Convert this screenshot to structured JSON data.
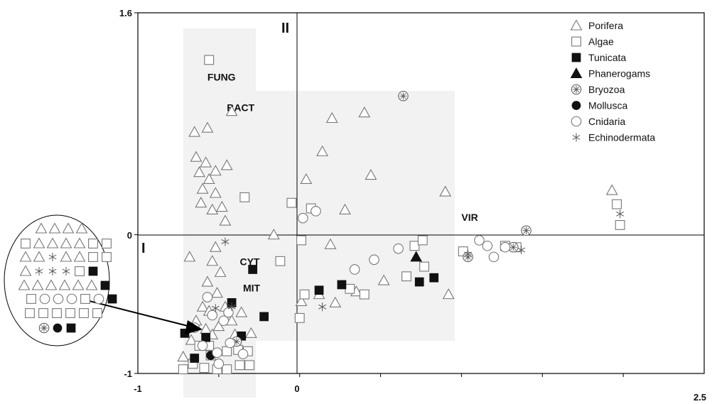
{
  "chart_data": {
    "type": "scatter",
    "title": "",
    "xlabel": "",
    "ylabel": "",
    "xlim": [
      -1,
      2.5
    ],
    "ylim": [
      -1,
      1.6
    ],
    "x_tick_labels": [
      "-1",
      "0",
      "2.5"
    ],
    "y_tick_labels": [
      "1.6",
      "0",
      "-1"
    ],
    "quadrant_labels": [
      "II",
      "I"
    ],
    "legend_position": "top-right",
    "grid": false,
    "activity_labels": [
      {
        "text": "FUNG",
        "x": -0.57,
        "y": 1.11
      },
      {
        "text": "BACT",
        "x": -0.45,
        "y": 0.89
      },
      {
        "text": "VIR",
        "x": 1.0,
        "y": 0.1
      },
      {
        "text": "CYT",
        "x": -0.37,
        "y": -0.22
      },
      {
        "text": "MIT",
        "x": -0.35,
        "y": -0.41
      }
    ],
    "series": [
      {
        "name": "Porifera",
        "marker": "triangle-open",
        "points": [
          [
            -0.65,
            0.74
          ],
          [
            -0.57,
            0.77
          ],
          [
            -0.64,
            0.56
          ],
          [
            -0.58,
            0.52
          ],
          [
            -0.52,
            0.46
          ],
          [
            -0.62,
            0.45
          ],
          [
            -0.56,
            0.4
          ],
          [
            -0.45,
            0.5
          ],
          [
            -0.6,
            0.33
          ],
          [
            -0.52,
            0.3
          ],
          [
            -0.61,
            0.23
          ],
          [
            -0.54,
            0.18
          ],
          [
            -0.48,
            0.2
          ],
          [
            -0.46,
            0.1
          ],
          [
            -0.42,
            0.89
          ],
          [
            -0.68,
            -0.16
          ],
          [
            -0.52,
            -0.09
          ],
          [
            -0.54,
            -0.19
          ],
          [
            -0.49,
            -0.27
          ],
          [
            -0.57,
            -0.34
          ],
          [
            -0.51,
            -0.42
          ],
          [
            -0.6,
            -0.52
          ],
          [
            -0.56,
            -0.55
          ],
          [
            -0.46,
            -0.52
          ],
          [
            -0.64,
            -0.62
          ],
          [
            -0.58,
            -0.68
          ],
          [
            -0.5,
            -0.66
          ],
          [
            -0.42,
            -0.62
          ],
          [
            -0.36,
            -0.56
          ],
          [
            -0.67,
            -0.76
          ],
          [
            -0.54,
            -0.72
          ],
          [
            -0.4,
            -0.72
          ],
          [
            -0.3,
            -0.71
          ],
          [
            -0.72,
            -0.88
          ],
          [
            -0.16,
            0.0
          ],
          [
            0.04,
            0.4
          ],
          [
            0.14,
            0.6
          ],
          [
            0.2,
            0.84
          ],
          [
            0.4,
            0.88
          ],
          [
            0.44,
            0.43
          ],
          [
            0.28,
            0.18
          ],
          [
            0.19,
            -0.07
          ],
          [
            0.12,
            -0.43
          ],
          [
            0.01,
            -0.48
          ],
          [
            0.22,
            -0.49
          ],
          [
            0.35,
            -0.41
          ],
          [
            0.52,
            -0.33
          ],
          [
            0.92,
            -0.43
          ],
          [
            0.9,
            0.31
          ],
          [
            1.93,
            0.32
          ]
        ]
      },
      {
        "name": "Algae",
        "marker": "square-open",
        "points": [
          [
            -0.56,
            1.26
          ],
          [
            -0.34,
            0.27
          ],
          [
            -0.05,
            0.23
          ],
          [
            0.01,
            -0.04
          ],
          [
            0.07,
            0.19
          ],
          [
            -0.12,
            -0.19
          ],
          [
            0.03,
            -0.43
          ],
          [
            0.0,
            -0.6
          ],
          [
            0.31,
            -0.39
          ],
          [
            0.4,
            -0.43
          ],
          [
            0.71,
            -0.08
          ],
          [
            0.76,
            -0.04
          ],
          [
            0.77,
            -0.23
          ],
          [
            0.66,
            -0.3
          ],
          [
            1.01,
            -0.12
          ],
          [
            1.27,
            -0.08
          ],
          [
            1.34,
            -0.09
          ],
          [
            1.96,
            0.22
          ],
          [
            1.98,
            0.07
          ],
          [
            -0.38,
            -0.83
          ],
          [
            -0.51,
            -0.97
          ],
          [
            -0.59,
            -0.96
          ],
          [
            -0.66,
            -0.93
          ],
          [
            -0.72,
            -0.97
          ],
          [
            -0.37,
            -0.94
          ],
          [
            -0.45,
            -0.97
          ],
          [
            -0.31,
            -0.94
          ],
          [
            -0.32,
            -0.84
          ],
          [
            -0.45,
            -0.84
          ],
          [
            -0.55,
            -0.87
          ],
          [
            -0.62,
            -0.8
          ],
          [
            -0.56,
            -0.8
          ]
        ]
      },
      {
        "name": "Tunicata",
        "marker": "square-filled",
        "points": [
          [
            -0.29,
            -0.25
          ],
          [
            -0.22,
            -0.59
          ],
          [
            -0.42,
            -0.49
          ],
          [
            -0.36,
            -0.73
          ],
          [
            -0.58,
            -0.74
          ],
          [
            -0.71,
            -0.71
          ],
          [
            -0.65,
            -0.89
          ],
          [
            0.12,
            -0.4
          ],
          [
            0.26,
            -0.36
          ],
          [
            0.74,
            -0.34
          ],
          [
            0.83,
            -0.31
          ]
        ]
      },
      {
        "name": "Phanerogams",
        "marker": "triangle-filled",
        "points": [
          [
            0.72,
            -0.16
          ]
        ]
      },
      {
        "name": "Bryozoa",
        "marker": "circle-asterisk",
        "points": [
          [
            0.64,
            1.0
          ],
          [
            1.4,
            0.03
          ],
          [
            1.32,
            -0.09
          ],
          [
            1.04,
            -0.16
          ],
          [
            -0.39,
            -0.77
          ]
        ]
      },
      {
        "name": "Mollusca",
        "marker": "circle-filled",
        "points": [
          [
            -0.55,
            -0.87
          ]
        ]
      },
      {
        "name": "Cnidaria",
        "marker": "circle-open",
        "points": [
          [
            0.02,
            0.12
          ],
          [
            0.1,
            0.17
          ],
          [
            0.46,
            -0.18
          ],
          [
            0.61,
            -0.1
          ],
          [
            0.34,
            -0.25
          ],
          [
            1.11,
            -0.04
          ],
          [
            1.16,
            -0.08
          ],
          [
            1.2,
            -0.16
          ],
          [
            1.27,
            -0.09
          ],
          [
            -0.57,
            -0.45
          ],
          [
            -0.54,
            -0.58
          ],
          [
            -0.44,
            -0.56
          ],
          [
            -0.47,
            -0.62
          ],
          [
            -0.65,
            -0.67
          ],
          [
            -0.6,
            -0.8
          ],
          [
            -0.51,
            -0.85
          ],
          [
            -0.5,
            -0.93
          ],
          [
            -0.43,
            -0.78
          ],
          [
            -0.35,
            -0.86
          ]
        ]
      },
      {
        "name": "Echinodermata",
        "marker": "asterisk",
        "points": [
          [
            -0.46,
            -0.05
          ],
          [
            -0.42,
            -0.52
          ],
          [
            -0.52,
            -0.53
          ],
          [
            0.14,
            -0.52
          ],
          [
            1.37,
            -0.11
          ],
          [
            1.04,
            -0.14
          ],
          [
            1.98,
            0.15
          ]
        ]
      }
    ],
    "inset": {
      "description": "magnified cluster",
      "rows": [
        [
          "triangle-open",
          "triangle-open",
          "triangle-open",
          "triangle-open"
        ],
        [
          "square-open",
          "triangle-open",
          "triangle-open",
          "triangle-open",
          "triangle-open",
          "square-open",
          "square-open"
        ],
        [
          "triangle-open",
          "triangle-open",
          "asterisk",
          "triangle-open",
          "triangle-open",
          "square-open",
          "square-open"
        ],
        [
          "triangle-open",
          "asterisk",
          "asterisk",
          "asterisk",
          "square-open",
          "square-filled"
        ],
        [
          "triangle-open",
          "triangle-open",
          "triangle-open",
          "triangle-open",
          "triangle-open",
          "triangle-open",
          "square-filled"
        ],
        [
          "square-open",
          "circle-open",
          "circle-open",
          "circle-open",
          "square-open",
          "circle-open",
          "square-filled"
        ],
        [
          "square-open",
          "square-open",
          "square-open",
          "square-open",
          "square-open",
          "square-open"
        ],
        [
          "circle-asterisk",
          "circle-filled",
          "square-filled"
        ]
      ]
    }
  }
}
